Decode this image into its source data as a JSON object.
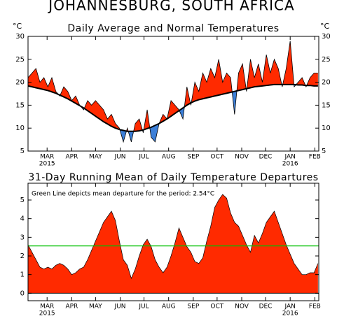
{
  "title": "JOHANNESBURG, SOUTH AFRICA",
  "chart_data": [
    {
      "type": "line",
      "title": "Daily Average and Normal Temperatures",
      "y_unit": "°C",
      "right_axis_labels": true,
      "fill_between": true,
      "above_color": "#ff2a00",
      "below_color": "#3c7fd8",
      "x": [
        0,
        5,
        10,
        15,
        20,
        25,
        30,
        35,
        40,
        45,
        50,
        55,
        60,
        65,
        70,
        75,
        80,
        85,
        90,
        95,
        100,
        105,
        110,
        115,
        120,
        125,
        130,
        135,
        140,
        145,
        150,
        155,
        160,
        165,
        170,
        175,
        180,
        185,
        190,
        195,
        200,
        205,
        210,
        215,
        220,
        225,
        230,
        235,
        240,
        245,
        250,
        255,
        260,
        265,
        270,
        275,
        280,
        285,
        290,
        295,
        300,
        305,
        310,
        315,
        320,
        325,
        330,
        335,
        340,
        345,
        350,
        355,
        360,
        365
      ],
      "xlim": [
        0,
        366
      ],
      "xticks": [
        {
          "value": 24,
          "label": "MAR"
        },
        {
          "value": 55,
          "label": "APR"
        },
        {
          "value": 85,
          "label": "MAY"
        },
        {
          "value": 116,
          "label": "JUN"
        },
        {
          "value": 146,
          "label": "JUL"
        },
        {
          "value": 177,
          "label": "AUG"
        },
        {
          "value": 208,
          "label": "SEP"
        },
        {
          "value": 238,
          "label": "OCT"
        },
        {
          "value": 269,
          "label": "NOV"
        },
        {
          "value": 299,
          "label": "DEC"
        },
        {
          "value": 330,
          "label": "JAN"
        },
        {
          "value": 361,
          "label": "FEB"
        }
      ],
      "year_labels": [
        {
          "value": 24,
          "label": "2015"
        },
        {
          "value": 330,
          "label": "2016"
        }
      ],
      "ylim": [
        5,
        30
      ],
      "yticks": [
        5,
        10,
        15,
        20,
        25,
        30
      ],
      "series": [
        {
          "color": "#000000",
          "values": [
            21,
            22,
            23,
            20,
            21,
            19,
            21,
            18,
            17,
            19,
            18,
            16,
            17,
            15,
            14,
            16,
            15,
            16,
            15,
            14,
            12,
            13,
            11,
            10,
            7,
            10,
            7,
            11,
            12,
            9,
            14,
            8,
            7,
            11,
            13,
            12,
            16,
            15,
            14,
            12,
            19,
            15,
            20,
            18,
            22,
            20,
            23,
            21,
            25,
            20,
            22,
            21,
            13,
            22,
            24,
            18,
            25,
            21,
            24,
            20,
            26,
            22,
            25,
            23,
            19,
            23,
            29,
            19,
            20,
            21,
            19,
            21,
            22,
            22
          ]
        },
        {
          "color": "#000000",
          "values": [
            19.2,
            19.0,
            18.8,
            18.6,
            18.4,
            18.2,
            17.9,
            17.6,
            17.2,
            16.8,
            16.4,
            15.9,
            15.4,
            14.9,
            14.4,
            13.8,
            13.2,
            12.6,
            12.0,
            11.4,
            10.9,
            10.4,
            10.0,
            9.7,
            9.5,
            9.3,
            9.3,
            9.3,
            9.4,
            9.6,
            9.9,
            10.2,
            10.6,
            11.0,
            11.5,
            12.0,
            12.6,
            13.2,
            13.8,
            14.4,
            15.0,
            15.5,
            15.9,
            16.2,
            16.4,
            16.6,
            16.8,
            17.0,
            17.2,
            17.4,
            17.6,
            17.8,
            18.0,
            18.2,
            18.4,
            18.6,
            18.8,
            19.0,
            19.1,
            19.2,
            19.3,
            19.4,
            19.5,
            19.5,
            19.5,
            19.5,
            19.5,
            19.5,
            19.4,
            19.4,
            19.3,
            19.3,
            19.2,
            19.2
          ]
        }
      ]
    },
    {
      "type": "area",
      "title": "31-Day Running Mean of Daily Temperature Departures",
      "annotation": "Green Line depicts mean departure for the period: 2.54°C",
      "mean": 2.54,
      "mean_color": "#00c000",
      "x": [
        0,
        5,
        10,
        15,
        20,
        25,
        30,
        35,
        40,
        45,
        50,
        55,
        60,
        65,
        70,
        75,
        80,
        85,
        90,
        95,
        100,
        105,
        110,
        115,
        120,
        125,
        130,
        135,
        140,
        145,
        150,
        155,
        160,
        165,
        170,
        175,
        180,
        185,
        190,
        195,
        200,
        205,
        210,
        215,
        220,
        225,
        230,
        235,
        240,
        245,
        250,
        255,
        260,
        265,
        270,
        275,
        280,
        285,
        290,
        295,
        300,
        305,
        310,
        315,
        320,
        325,
        330,
        335,
        340,
        345,
        350,
        355,
        360,
        365
      ],
      "xlim": [
        0,
        366
      ],
      "xticks": [
        {
          "value": 24,
          "label": "MAR"
        },
        {
          "value": 55,
          "label": "APR"
        },
        {
          "value": 85,
          "label": "MAY"
        },
        {
          "value": 116,
          "label": "JUN"
        },
        {
          "value": 146,
          "label": "JUL"
        },
        {
          "value": 177,
          "label": "AUG"
        },
        {
          "value": 208,
          "label": "SEP"
        },
        {
          "value": 238,
          "label": "OCT"
        },
        {
          "value": 269,
          "label": "NOV"
        },
        {
          "value": 299,
          "label": "DEC"
        },
        {
          "value": 330,
          "label": "JAN"
        },
        {
          "value": 361,
          "label": "FEB"
        }
      ],
      "year_labels": [
        {
          "value": 24,
          "label": "2015"
        },
        {
          "value": 330,
          "label": "2016"
        }
      ],
      "ylim": [
        -0.4,
        5.9
      ],
      "yticks": [
        0,
        1,
        2,
        3,
        4,
        5
      ],
      "color": "#ff2a00",
      "values": [
        2.6,
        2.2,
        1.8,
        1.4,
        1.3,
        1.4,
        1.3,
        1.5,
        1.6,
        1.5,
        1.3,
        1.0,
        1.1,
        1.3,
        1.4,
        1.8,
        2.3,
        2.8,
        3.3,
        3.8,
        4.1,
        4.4,
        3.9,
        2.8,
        1.8,
        1.5,
        0.8,
        1.3,
        2.0,
        2.6,
        2.9,
        2.5,
        1.8,
        1.4,
        1.1,
        1.4,
        2.0,
        2.7,
        3.5,
        3.0,
        2.5,
        2.2,
        1.7,
        1.6,
        1.9,
        2.8,
        3.6,
        4.6,
        5.0,
        5.3,
        5.1,
        4.3,
        3.8,
        3.6,
        3.1,
        2.6,
        2.2,
        3.1,
        2.7,
        3.2,
        3.8,
        4.1,
        4.4,
        3.8,
        3.2,
        2.6,
        2.1,
        1.6,
        1.3,
        1.0,
        1.0,
        1.1,
        1.1,
        1.6
      ]
    }
  ]
}
